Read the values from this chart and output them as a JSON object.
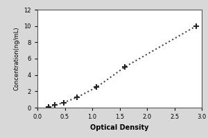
{
  "xlabel": "Optical Density",
  "ylabel": "Concentration(ng/mL)",
  "xlim": [
    0,
    3
  ],
  "ylim": [
    0,
    12
  ],
  "xticks": [
    0,
    0.5,
    1,
    1.5,
    2,
    2.5,
    3
  ],
  "yticks": [
    0,
    2,
    4,
    6,
    8,
    10,
    12
  ],
  "data_x": [
    0.2,
    0.32,
    0.48,
    0.72,
    1.08,
    1.6,
    2.9
  ],
  "data_y": [
    0.1,
    0.3,
    0.625,
    1.25,
    2.5,
    5.0,
    10.0
  ],
  "line_color": "#444444",
  "marker_color": "#222222",
  "marker_size": 6,
  "line_style": ":",
  "line_width": 1.5,
  "axis_label_fontsize": 7,
  "tick_fontsize": 6,
  "background_color": "#ffffff",
  "figure_background": "#d8d8d8"
}
